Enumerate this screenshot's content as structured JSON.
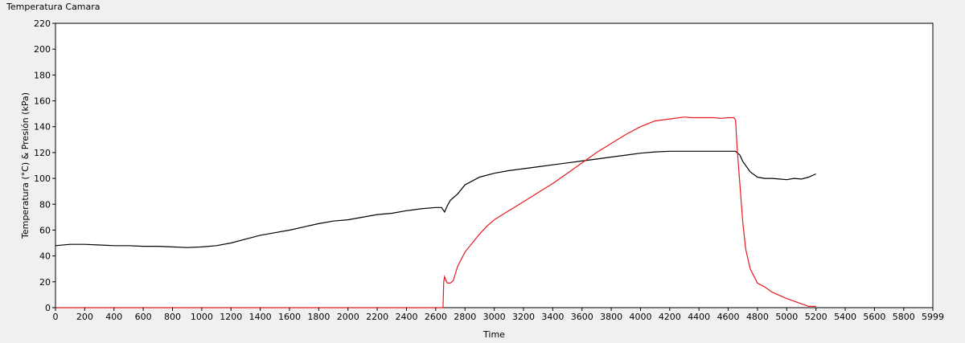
{
  "chart_data": {
    "type": "line",
    "title": "Temperatura Camara",
    "xlabel": "Time",
    "ylabel": "Temperatura (°C) & Presión (kPa)",
    "xlim": [
      0,
      5999
    ],
    "ylim": [
      0,
      220
    ],
    "x_ticks": [
      0,
      200,
      400,
      600,
      800,
      1000,
      1200,
      1400,
      1600,
      1800,
      2000,
      2200,
      2400,
      2600,
      2800,
      3000,
      3200,
      3400,
      3600,
      3800,
      4000,
      4200,
      4400,
      4600,
      4800,
      5000,
      5200,
      5400,
      5600,
      5800,
      5999
    ],
    "y_ticks": [
      0,
      20,
      40,
      60,
      80,
      100,
      120,
      140,
      160,
      180,
      200,
      220
    ],
    "grid": false,
    "colors": {
      "plot_bg": "#ffffff",
      "page_bg": "#f0f0f0"
    },
    "series": [
      {
        "color": "#000000",
        "x": [
          0,
          100,
          200,
          300,
          400,
          500,
          600,
          700,
          800,
          900,
          1000,
          1100,
          1200,
          1300,
          1400,
          1500,
          1600,
          1700,
          1800,
          1900,
          2000,
          2100,
          2200,
          2300,
          2400,
          2500,
          2600,
          2640,
          2660,
          2680,
          2700,
          2750,
          2800,
          2900,
          3000,
          3100,
          3200,
          3300,
          3400,
          3500,
          3600,
          3700,
          3800,
          3900,
          4000,
          4100,
          4200,
          4300,
          4400,
          4500,
          4600,
          4650,
          4680,
          4700,
          4750,
          4800,
          4850,
          4900,
          4950,
          5000,
          5050,
          5100,
          5150,
          5200
        ],
        "y": [
          48,
          49,
          49,
          48.5,
          48,
          48,
          47.5,
          47.5,
          47,
          46.5,
          47,
          48,
          50,
          53,
          56,
          58,
          60,
          62.5,
          65,
          67,
          68,
          70,
          72,
          73,
          75,
          76.5,
          77.5,
          77.5,
          74,
          79,
          83,
          88,
          95,
          101,
          104,
          106,
          107.5,
          109,
          110.5,
          112,
          113.5,
          115,
          116.5,
          118,
          119.5,
          120.5,
          121,
          121,
          121,
          121,
          121,
          121,
          118,
          113,
          105,
          101,
          100,
          100,
          99.5,
          99,
          100,
          99.5,
          101,
          103.5
        ]
      },
      {
        "color": "#e8191e",
        "x": [
          0,
          500,
          1000,
          1500,
          2000,
          2500,
          2650,
          2655,
          2660,
          2670,
          2680,
          2700,
          2720,
          2750,
          2800,
          2850,
          2900,
          2950,
          3000,
          3100,
          3200,
          3300,
          3400,
          3500,
          3600,
          3700,
          3800,
          3900,
          4000,
          4100,
          4200,
          4300,
          4350,
          4400,
          4450,
          4500,
          4550,
          4600,
          4640,
          4650,
          4660,
          4680,
          4700,
          4720,
          4750,
          4800,
          4850,
          4900,
          5000,
          5100,
          5150,
          5200
        ],
        "y": [
          0,
          0,
          0,
          0,
          0,
          0,
          0,
          20,
          24,
          21,
          19,
          19,
          21,
          32,
          43,
          50,
          57,
          63,
          68,
          75,
          82,
          89,
          96,
          104,
          112,
          120,
          127,
          134,
          140,
          144.5,
          146,
          147.5,
          147,
          147,
          147,
          147,
          146.5,
          147,
          147,
          145,
          125,
          95,
          65,
          45,
          30,
          19,
          16,
          12,
          7,
          3,
          1,
          1
        ]
      }
    ]
  }
}
